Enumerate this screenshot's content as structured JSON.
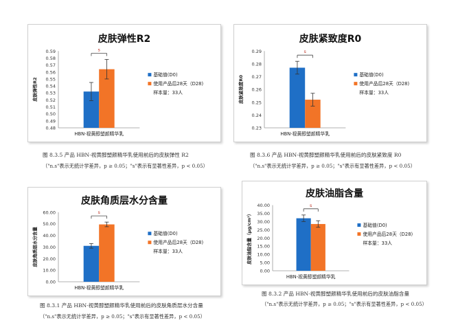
{
  "colors": {
    "baseline": "#1f6fc6",
    "after": "#f27427",
    "sig": "#c0392b"
  },
  "figures": [
    {
      "caption": "图 8.3.5 产品 HBN-视黄醇塑颜精华乳使用前后的皮肤弹性 R2",
      "note": "（\"n.s\"表示无统计学差异，p ≥ 0.05；\"s\"表示有显著性差异，p < 0.05）",
      "chart_data": {
        "type": "bar",
        "title": "皮肤弹性R2",
        "ylabel": "皮肤弹性R2",
        "categories": [
          "HBN-视黄醇塑颜精华乳"
        ],
        "ylim": [
          0.48,
          0.59
        ],
        "yticks": [
          "0.59",
          "0.58",
          "0.57",
          "0.56",
          "0.55",
          "0.54",
          "0.53",
          "0.52",
          "0.51",
          "0.50",
          "0.49",
          "0.48"
        ],
        "series": [
          {
            "name": "基础值(D0)",
            "values": [
              0.532
            ],
            "error": [
              0.013
            ]
          },
          {
            "name": "使用产品后28天（D28)",
            "values": [
              0.564
            ],
            "error": [
              0.014
            ]
          }
        ],
        "significance": "s",
        "sample": "样本量：33人"
      }
    },
    {
      "caption": "图 8.3.6 产品 HBN-视黄醇塑颜精华乳使用前后的皮肤紧致度 R0",
      "note": "（\"n.s\"表示无统计学差异，p ≥ 0.05；\"s\"表示有显著性差异，p < 0.05）",
      "chart_data": {
        "type": "bar",
        "title": "皮肤紧致度R0",
        "ylabel": "皮肤紧致度R0",
        "categories": [
          "HBN-视黄醇塑颜精华乳"
        ],
        "ylim": [
          0.23,
          0.29
        ],
        "yticks": [
          "0.29",
          "0.28",
          "0.27",
          "0.26",
          "0.25",
          "0.24",
          "0.23"
        ],
        "series": [
          {
            "name": "基础值(D0)",
            "values": [
              0.277
            ],
            "error": [
              0.005
            ]
          },
          {
            "name": "使用产品后28天（D28)",
            "values": [
              0.252
            ],
            "error": [
              0.005
            ]
          }
        ],
        "significance": "s",
        "sample": "样本量：33人"
      }
    },
    {
      "caption": "图 8.3.1 产品 HBN-视黄醇塑颜精华乳使用前后的皮肤角质层水分含量",
      "note": "（\"n.s\"表示无统计学差异，p ≥ 0.05；\"s\"表示有显著性差异，p < 0.05）",
      "chart_data": {
        "type": "bar",
        "title": "皮肤角质层水分含量",
        "ylabel": "皮肤角质层水分含量",
        "categories": [
          "HBN-视黄醇塑颜精华乳"
        ],
        "ylim": [
          0,
          60
        ],
        "yticks": [
          "60.00",
          "50.00",
          "40.00",
          "30.00",
          "20.00",
          "10.00",
          "0.00"
        ],
        "series": [
          {
            "name": "基础值(D0)",
            "values": [
              31.0
            ],
            "error": [
              2.0
            ]
          },
          {
            "name": "使用产品后28天（D28)",
            "values": [
              49.5
            ],
            "error": [
              2.0
            ]
          }
        ],
        "significance": "s",
        "sample": "样本量：33人"
      }
    },
    {
      "caption": "图 8.3.2 产品 HBN-视黄醇塑颜精华乳使用前后的皮肤油脂含量",
      "note": "（\"n.s\"表示无统计学差异，p ≥ 0.05；\"s\"表示有显著性差异，p < 0.05）",
      "chart_data": {
        "type": "bar",
        "title": "皮肤油脂含量",
        "ylabel": "皮肤油脂含量（μg/cm²）",
        "categories": [
          "HBN-视黄醇塑颜精华乳"
        ],
        "ylim": [
          0,
          40
        ],
        "yticks": [
          "40.00",
          "35.00",
          "30.00",
          "25.00",
          "20.00",
          "15.00",
          "10.00",
          "5.00",
          "0.00"
        ],
        "series": [
          {
            "name": "基础值(D0)",
            "values": [
              32.0
            ],
            "error": [
              2.0
            ]
          },
          {
            "name": "使用产品后28天（D28)",
            "values": [
              28.5
            ],
            "error": [
              2.0
            ]
          }
        ],
        "significance": "s",
        "sample": "样本量：33人"
      }
    }
  ]
}
